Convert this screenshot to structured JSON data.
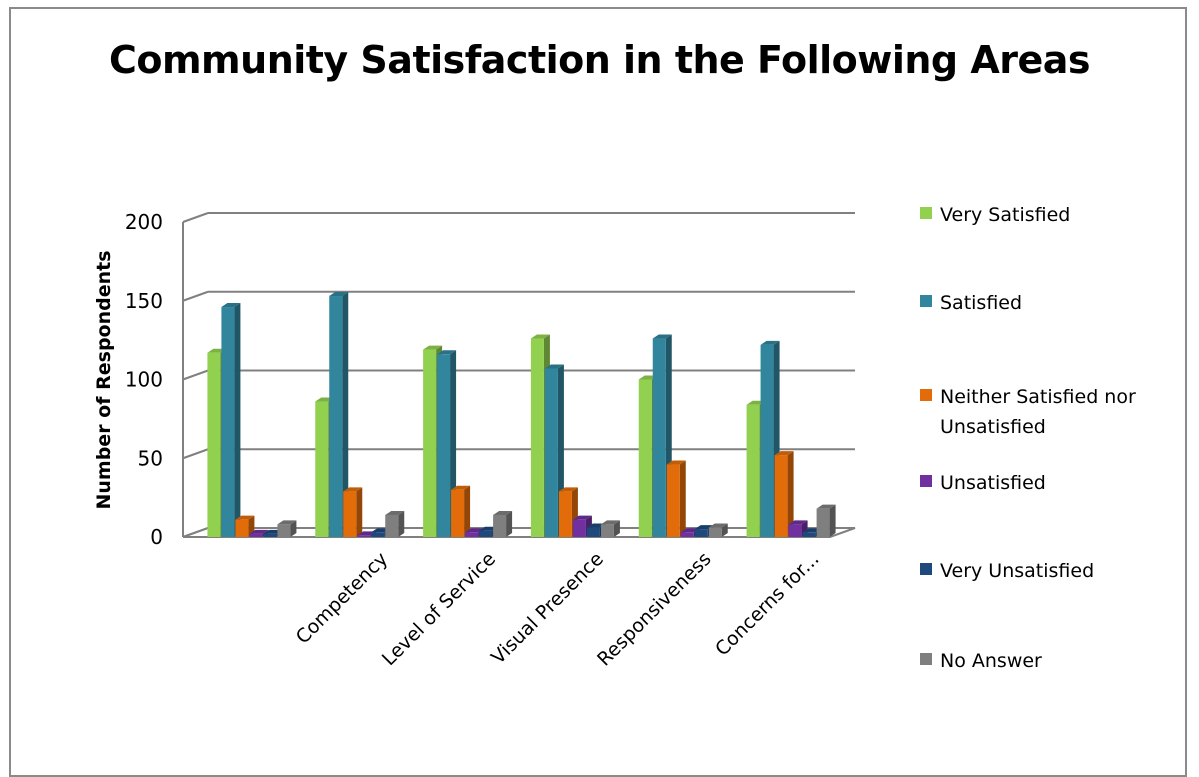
{
  "chart_data": {
    "type": "bar",
    "title": "Community Satisfaction in the Following Areas",
    "xlabel": "",
    "ylabel": "Number of Respondents",
    "ylim": [
      0,
      200
    ],
    "yticks": [
      0,
      50,
      100,
      150,
      200
    ],
    "grid": true,
    "legend_position": "right",
    "categories": [
      "",
      "Competency",
      "Level of Service",
      "Visual Presence",
      "Responsiveness",
      "Concerns for..."
    ],
    "series": [
      {
        "name": "Very Satisfied",
        "color": "#92d050",
        "values": [
          117,
          86,
          119,
          126,
          100,
          84
        ]
      },
      {
        "name": "Satisfied",
        "color": "#31859c",
        "values": [
          146,
          153,
          116,
          107,
          126,
          122
        ]
      },
      {
        "name": "Neither Satisfied nor Unsatisfied",
        "color": "#e36c0a",
        "values": [
          11,
          29,
          30,
          29,
          46,
          52
        ]
      },
      {
        "name": "Unsatisfied",
        "color": "#7030a0",
        "values": [
          2,
          1,
          3,
          11,
          3,
          8
        ]
      },
      {
        "name": "Very Unsatisfied",
        "color": "#1f497d",
        "values": [
          2,
          3,
          4,
          6,
          5,
          3
        ]
      },
      {
        "name": "No Answer",
        "color": "#7f7f7f",
        "values": [
          8,
          14,
          14,
          8,
          6,
          18
        ]
      }
    ]
  }
}
